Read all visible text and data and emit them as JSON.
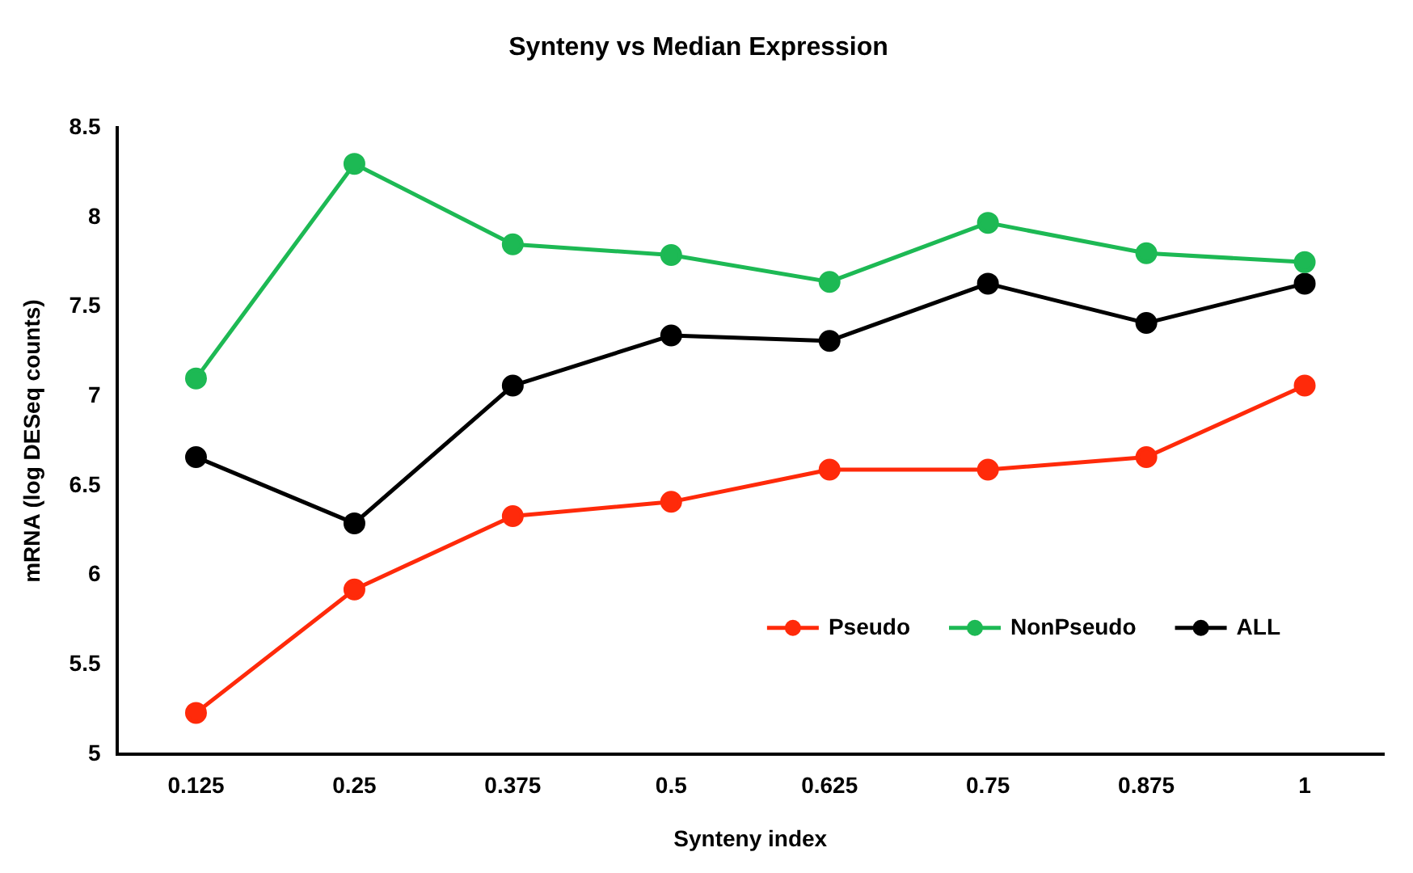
{
  "chart_data": {
    "type": "line",
    "title": "Synteny vs Median Expression",
    "xlabel": "Synteny index",
    "ylabel": "mRNA (log DESeq counts)",
    "categories": [
      "0.125",
      "0.25",
      "0.375",
      "0.5",
      "0.625",
      "0.75",
      "0.875",
      "1"
    ],
    "series": [
      {
        "name": "Pseudo",
        "color": "#ff2a0a",
        "values": [
          5.23,
          5.92,
          6.33,
          6.41,
          6.59,
          6.59,
          6.66,
          7.06
        ]
      },
      {
        "name": "NonPseudo",
        "color": "#1db954",
        "values": [
          7.1,
          8.3,
          7.85,
          7.79,
          7.64,
          7.97,
          7.8,
          7.75
        ]
      },
      {
        "name": "ALL",
        "color": "#000000",
        "values": [
          6.66,
          6.29,
          7.06,
          7.34,
          7.31,
          7.63,
          7.41,
          7.63
        ]
      }
    ],
    "ylim": [
      5,
      8.5
    ],
    "yticks": [
      5,
      5.5,
      6,
      6.5,
      7,
      7.5,
      8,
      8.5
    ],
    "grid": false,
    "legend": "bottom right",
    "marker": "circle",
    "line_style": "solid"
  }
}
